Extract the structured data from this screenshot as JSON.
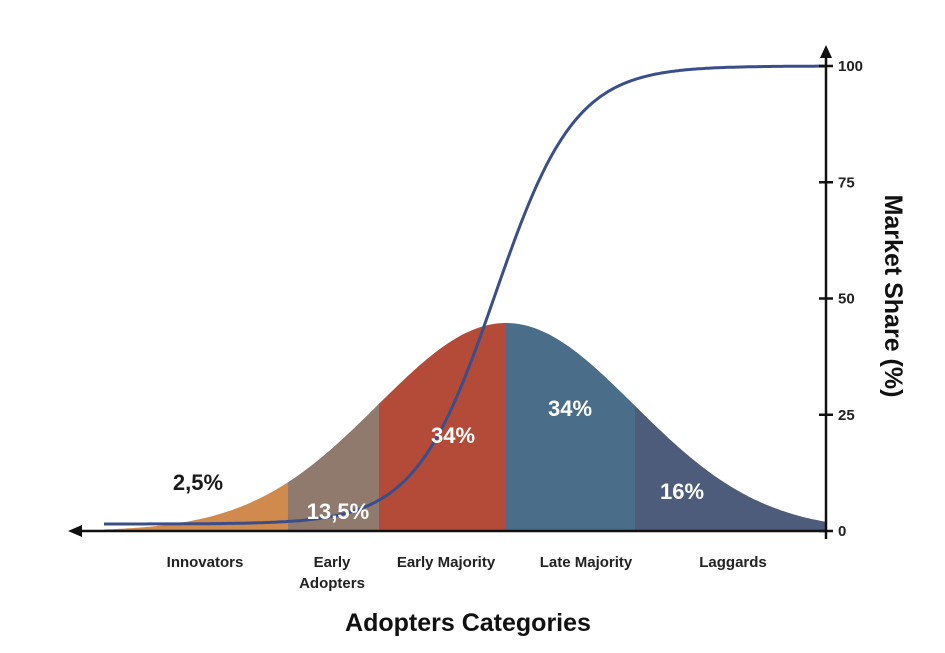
{
  "chart_data": {
    "type": "area",
    "xlabel": "Adopters Categories",
    "ylabel": "Market Share (%)",
    "ylim": [
      0,
      100
    ],
    "yticks": [
      0,
      25,
      50,
      75,
      100
    ],
    "y_axis_side": "right",
    "categories": [
      {
        "lines": [
          "Innovators"
        ],
        "share": "2,5%",
        "color": "#d18a4d",
        "label_color": "#1a1a1a"
      },
      {
        "lines": [
          "Early",
          "Adopters"
        ],
        "share": "13,5%",
        "color": "#8f7a6d",
        "label_color": "#ffffff"
      },
      {
        "lines": [
          "Early Majority"
        ],
        "share": "34%",
        "color": "#b34b38",
        "label_color": "#ffffff"
      },
      {
        "lines": [
          "Late Majority"
        ],
        "share": "34%",
        "color": "#4a6e89",
        "label_color": "#ffffff"
      },
      {
        "lines": [
          "Laggards"
        ],
        "share": "16%",
        "color": "#4d5c7a",
        "label_color": "#ffffff"
      }
    ],
    "series": [
      {
        "kind": "market-share-s-curve",
        "color": "#3a4f8a"
      }
    ]
  }
}
